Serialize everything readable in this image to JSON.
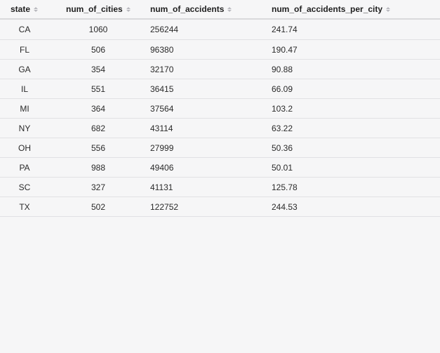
{
  "table": {
    "columns": [
      "state",
      "num_of_cities",
      "num_of_accidents",
      "num_of_accidents_per_city"
    ],
    "rows": [
      [
        "CA",
        "1060",
        "256244",
        "241.74"
      ],
      [
        "FL",
        "506",
        "96380",
        "190.47"
      ],
      [
        "GA",
        "354",
        "32170",
        "90.88"
      ],
      [
        "IL",
        "551",
        "36415",
        "66.09"
      ],
      [
        "MI",
        "364",
        "37564",
        "103.2"
      ],
      [
        "NY",
        "682",
        "43114",
        "63.22"
      ],
      [
        "OH",
        "556",
        "27999",
        "50.36"
      ],
      [
        "PA",
        "988",
        "49406",
        "50.01"
      ],
      [
        "SC",
        "327",
        "41131",
        "125.78"
      ],
      [
        "TX",
        "502",
        "122752",
        "244.53"
      ]
    ]
  },
  "icons": {
    "sort": "sort-icon"
  }
}
